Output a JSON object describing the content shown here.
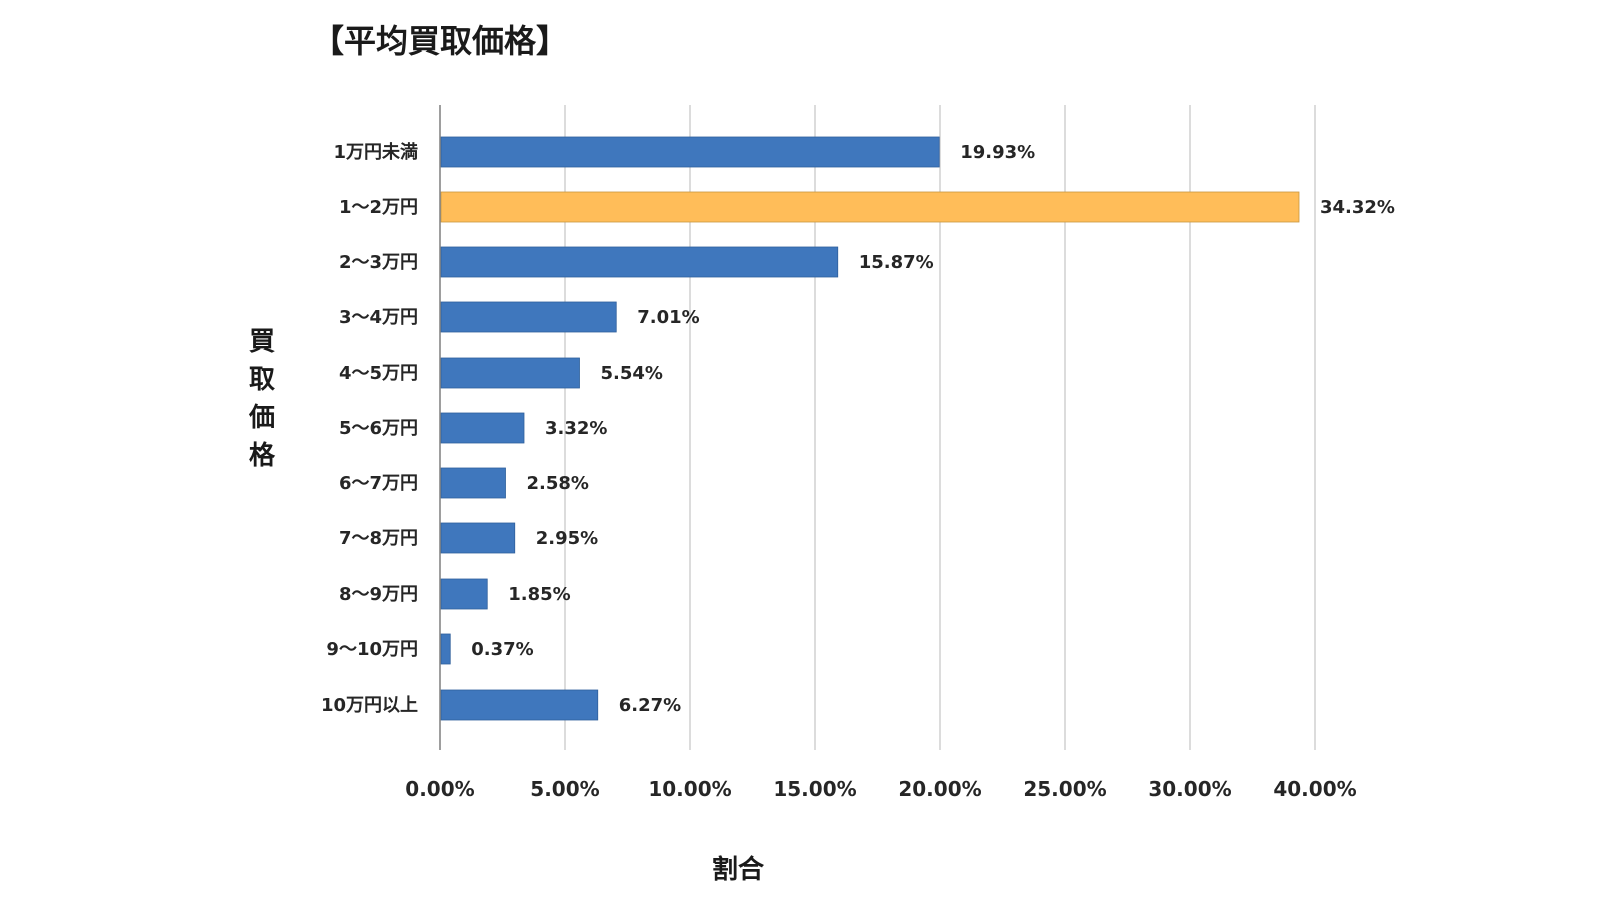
{
  "chart_data": {
    "type": "bar",
    "orientation": "horizontal",
    "title": "【平均買取価格】",
    "xlabel": "割合",
    "ylabel": "買取価格",
    "categories": [
      "1万円未満",
      "1～2万円",
      "2～3万円",
      "3～4万円",
      "4～5万円",
      "5～6万円",
      "6～7万円",
      "7～8万円",
      "8～9万円",
      "9～10万円",
      "10万円以上"
    ],
    "values": [
      19.93,
      34.32,
      15.87,
      7.01,
      5.54,
      3.32,
      2.58,
      2.95,
      1.85,
      0.37,
      6.27
    ],
    "value_labels": [
      "19.93%",
      "34.32%",
      "15.87%",
      "7.01%",
      "5.54%",
      "3.32%",
      "2.58%",
      "2.95%",
      "1.85%",
      "0.37%",
      "6.27%"
    ],
    "x_ticks": [
      "0.00%",
      "5.00%",
      "10.00%",
      "15.00%",
      "20.00%",
      "25.00%",
      "30.00%",
      "40.00%"
    ],
    "xlim": [
      0,
      35
    ],
    "grid": true,
    "legend": "none",
    "colors": {
      "bar": "#3f77bd",
      "highlight": "#ffbd59",
      "grid": "#d0d0d0",
      "axis": "#7f7f7f"
    },
    "highlight_index": 1
  }
}
